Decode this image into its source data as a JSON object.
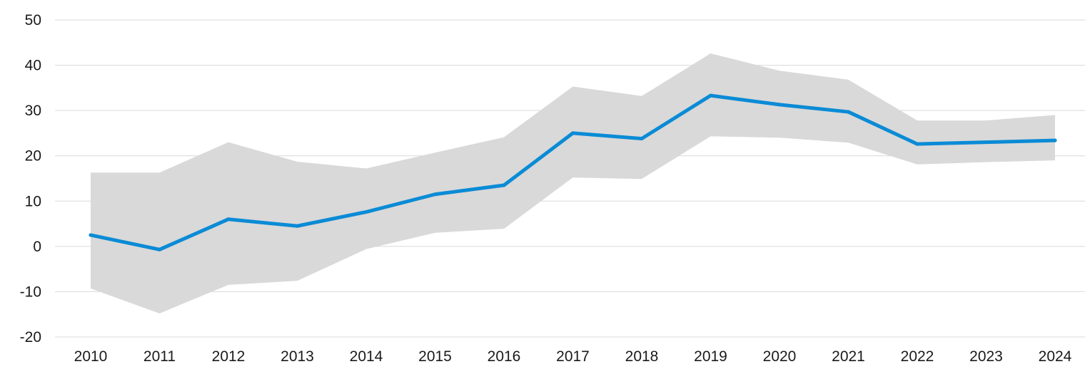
{
  "chart_data": {
    "type": "line",
    "title": "",
    "xlabel": "",
    "ylabel": "",
    "categories": [
      "2010",
      "2011",
      "2012",
      "2013",
      "2014",
      "2015",
      "2016",
      "2017",
      "2018",
      "2019",
      "2020",
      "2021",
      "2022",
      "2023",
      "2024"
    ],
    "series": [
      {
        "values": [
          2.5,
          -0.7,
          6.0,
          4.5,
          7.6,
          11.5,
          13.5,
          25.0,
          23.8,
          33.3,
          31.3,
          29.7,
          22.6,
          23.0,
          23.4
        ]
      }
    ],
    "band": {
      "upper": [
        16.3,
        16.3,
        23.0,
        18.7,
        17.2,
        20.7,
        24.1,
        35.3,
        33.2,
        42.6,
        38.8,
        36.8,
        27.8,
        27.8,
        29.0
      ],
      "lower": [
        -9.3,
        -14.8,
        -8.5,
        -7.6,
        -0.6,
        3.0,
        3.9,
        15.2,
        14.9,
        24.3,
        24.0,
        22.9,
        18.1,
        18.6,
        19.0
      ]
    },
    "ylim": [
      -20,
      50
    ],
    "yticks": [
      "50",
      "40",
      "30",
      "20",
      "10",
      "0",
      "-10",
      "-20"
    ],
    "grid": true,
    "colors": {
      "line": "#0a8bd6",
      "band": "#d9d9d9",
      "grid": "#d9d9d9"
    }
  }
}
